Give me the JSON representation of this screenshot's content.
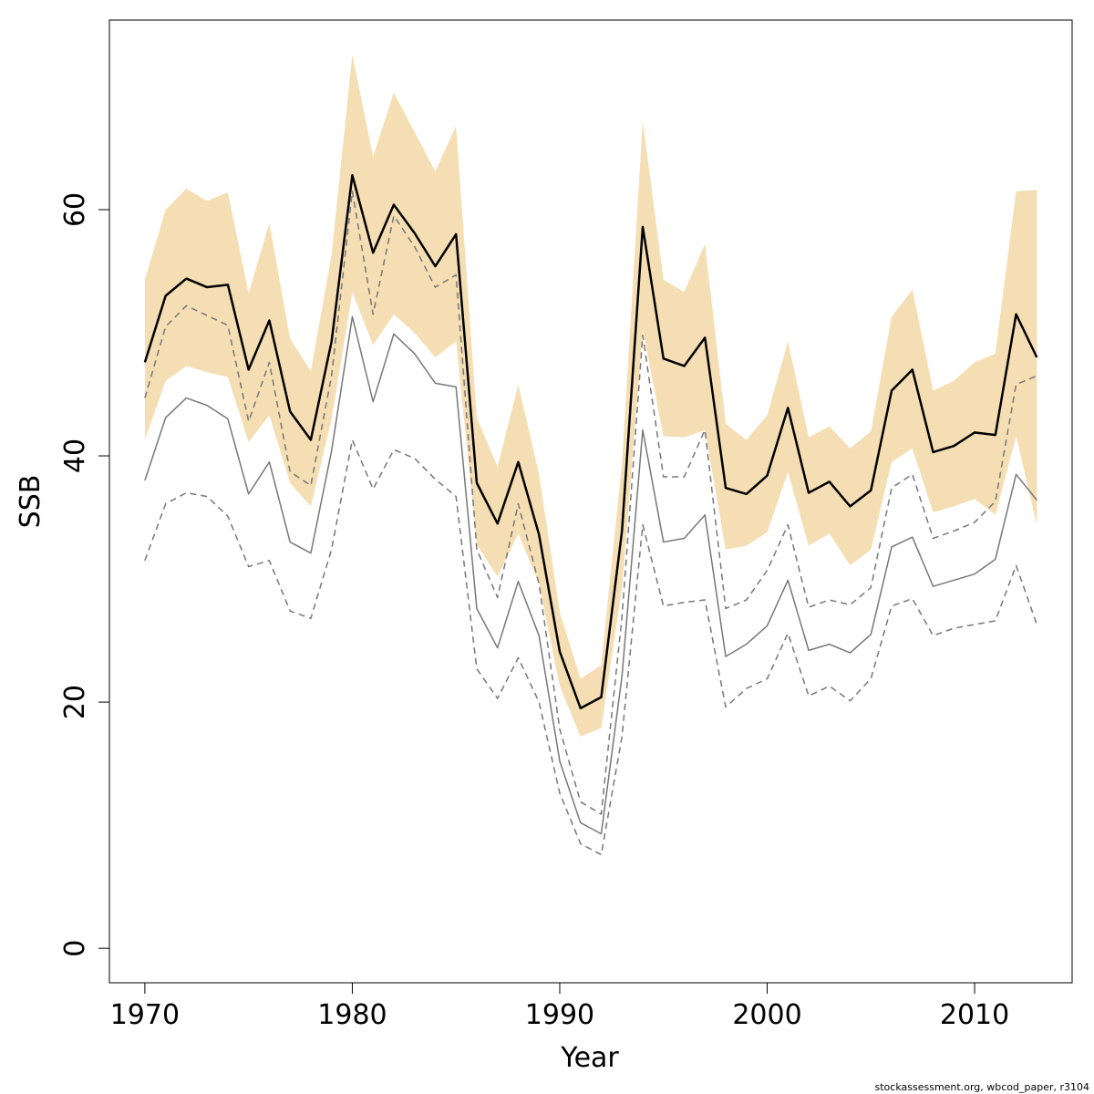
{
  "chart_data": {
    "type": "line",
    "xlabel": "Year",
    "ylabel": "SSB",
    "footnote": "stockassessment.org, wbcod_paper, r3104",
    "xlim": [
      1968.29,
      2014.7
    ],
    "ylim": [
      -2.8,
      75.4
    ],
    "xticks": [
      1970,
      1980,
      1990,
      2000,
      2010
    ],
    "yticks": [
      0,
      20,
      40,
      60
    ],
    "x": [
      1970,
      1971,
      1972,
      1973,
      1974,
      1975,
      1976,
      1977,
      1978,
      1979,
      1980,
      1981,
      1982,
      1983,
      1984,
      1985,
      1986,
      1987,
      1988,
      1989,
      1990,
      1991,
      1992,
      1993,
      1994,
      1995,
      1996,
      1997,
      1998,
      1999,
      2000,
      2001,
      2002,
      2003,
      2004,
      2005,
      2006,
      2007,
      2008,
      2009,
      2010,
      2011,
      2012,
      2013
    ],
    "band": {
      "color": "#f5deb3",
      "upper": [
        54.3,
        60.0,
        61.7,
        60.7,
        61.4,
        53.2,
        58.9,
        49.5,
        46.9,
        56.3,
        72.6,
        64.3,
        69.5,
        66.3,
        63.1,
        66.8,
        43.1,
        39.1,
        45.8,
        38.5,
        27.3,
        21.9,
        23.0,
        39.4,
        67.2,
        54.3,
        53.3,
        57.2,
        42.6,
        41.3,
        43.3,
        49.3,
        41.5,
        42.4,
        40.6,
        42.0,
        51.3,
        53.5,
        45.3,
        46.1,
        47.6,
        48.3,
        61.5,
        61.6
      ],
      "lower": [
        41.3,
        46.1,
        47.3,
        46.8,
        46.4,
        41.1,
        43.3,
        37.8,
        35.9,
        43.0,
        53.3,
        49.0,
        51.5,
        50.0,
        48.0,
        49.3,
        32.8,
        30.2,
        33.7,
        29.6,
        21.3,
        17.2,
        17.9,
        29.3,
        50.2,
        41.6,
        41.5,
        42.1,
        32.4,
        32.7,
        33.8,
        38.7,
        32.7,
        33.7,
        31.1,
        32.4,
        39.5,
        40.6,
        35.4,
        35.9,
        36.5,
        35.2,
        41.6,
        34.4
      ]
    },
    "series": [
      {
        "color": "#000000",
        "width": 2.5,
        "dashed": false,
        "values": [
          47.6,
          53.0,
          54.4,
          53.7,
          53.9,
          47.0,
          51.0,
          43.6,
          41.3,
          49.3,
          62.8,
          56.5,
          60.4,
          58.1,
          55.4,
          58.0,
          37.8,
          34.5,
          39.5,
          33.6,
          24.1,
          19.5,
          20.4,
          33.9,
          58.6,
          47.9,
          47.3,
          49.6,
          37.4,
          36.9,
          38.4,
          43.9,
          37.0,
          37.9,
          35.9,
          37.2,
          45.3,
          47.0,
          40.3,
          40.8,
          41.9,
          41.7,
          51.5,
          48.0
        ]
      },
      {
        "color": "#777777",
        "width": 1.5,
        "dashed": false,
        "values": [
          38.0,
          43.1,
          44.7,
          44.1,
          43.0,
          36.9,
          39.5,
          33.0,
          32.1,
          40.4,
          51.3,
          44.4,
          49.9,
          48.3,
          45.9,
          45.6,
          27.6,
          24.4,
          29.8,
          25.4,
          15.2,
          10.2,
          9.3,
          22.1,
          42.1,
          33.0,
          33.3,
          35.2,
          23.7,
          24.7,
          26.2,
          29.9,
          24.2,
          24.7,
          24.0,
          25.5,
          32.6,
          33.4,
          29.4,
          29.9,
          30.4,
          31.6,
          38.5,
          36.4
        ]
      },
      {
        "color": "#777777",
        "width": 1.5,
        "dashed": true,
        "values": [
          44.7,
          50.5,
          52.2,
          51.4,
          50.6,
          42.8,
          47.6,
          38.7,
          37.6,
          46.5,
          61.5,
          51.5,
          59.5,
          57.0,
          53.7,
          54.7,
          32.4,
          28.5,
          36.1,
          29.6,
          17.8,
          11.9,
          10.9,
          26.9,
          49.8,
          38.3,
          38.3,
          42.1,
          27.6,
          28.3,
          30.7,
          34.4,
          27.7,
          28.3,
          27.9,
          29.3,
          37.4,
          38.5,
          33.3,
          33.9,
          34.6,
          36.3,
          45.8,
          46.5
        ]
      },
      {
        "color": "#777777",
        "width": 1.5,
        "dashed": true,
        "values": [
          31.5,
          36.1,
          37.0,
          36.7,
          35.1,
          31.0,
          31.5,
          27.4,
          26.8,
          32.4,
          41.3,
          37.3,
          40.5,
          39.8,
          38.1,
          36.7,
          22.7,
          20.3,
          23.6,
          20.0,
          12.6,
          8.5,
          7.6,
          17.2,
          34.4,
          27.8,
          28.1,
          28.3,
          19.6,
          21.1,
          21.9,
          25.6,
          20.5,
          21.3,
          20.1,
          21.9,
          27.8,
          28.4,
          25.4,
          26.0,
          26.3,
          26.6,
          31.1,
          26.3
        ]
      }
    ]
  }
}
